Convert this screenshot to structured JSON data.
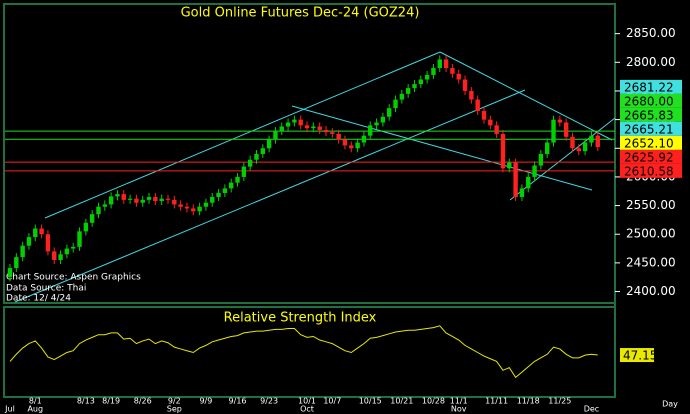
{
  "chart_data": [
    {
      "type": "candlestick",
      "title": "Gold Online Futures Dec-24 (GOZ24)",
      "xlabel": "Day",
      "sources": [
        "Chart Source: Aspen Graphics",
        "Data Source: Thai",
        "Date: 12/ 4/24"
      ],
      "categories": [
        null,
        null,
        null,
        null,
        "8/1",
        null,
        null,
        null,
        null,
        null,
        null,
        null,
        "8/13",
        null,
        null,
        null,
        "8/19",
        null,
        null,
        null,
        null,
        "8/26",
        null,
        null,
        null,
        null,
        "9/2",
        null,
        null,
        null,
        null,
        "9/9",
        null,
        null,
        null,
        null,
        "9/16",
        null,
        null,
        null,
        null,
        "9/23",
        null,
        null,
        null,
        null,
        null,
        "10/1",
        null,
        null,
        null,
        "10/7",
        null,
        null,
        null,
        null,
        null,
        "10/15",
        null,
        null,
        null,
        null,
        "10/21",
        null,
        null,
        null,
        null,
        "10/28",
        null,
        null,
        null,
        "11/1",
        null,
        null,
        null,
        null,
        null,
        "11/11",
        null,
        null,
        null,
        null,
        "11/18",
        null,
        null,
        null,
        null,
        "11/25",
        null,
        null,
        null,
        null,
        null,
        null
      ],
      "month_labels": [
        "Jul",
        null,
        null,
        null,
        "Aug",
        null,
        null,
        null,
        null,
        null,
        null,
        null,
        null,
        null,
        null,
        null,
        null,
        null,
        null,
        null,
        null,
        null,
        null,
        null,
        null,
        null,
        "Sep",
        null,
        null,
        null,
        null,
        null,
        null,
        null,
        null,
        null,
        null,
        null,
        null,
        null,
        null,
        null,
        null,
        null,
        null,
        null,
        null,
        "Oct",
        null,
        null,
        null,
        null,
        null,
        null,
        null,
        null,
        null,
        null,
        null,
        null,
        null,
        null,
        null,
        null,
        null,
        null,
        null,
        null,
        null,
        null,
        null,
        "Nov",
        null,
        null,
        null,
        null,
        null,
        null,
        null,
        null,
        null,
        null,
        null,
        null,
        null,
        null,
        null,
        null,
        null,
        null,
        null,
        null,
        "Dec",
        null
      ],
      "open": [
        2425,
        2441,
        2460,
        2480,
        2495,
        2510,
        2500,
        2470,
        2455,
        2465,
        2475,
        2478,
        2505,
        2520,
        2535,
        2548,
        2552,
        2566,
        2570,
        2560,
        2562,
        2555,
        2560,
        2565,
        2558,
        2562,
        2560,
        2552,
        2548,
        2545,
        2540,
        2548,
        2555,
        2565,
        2572,
        2580,
        2590,
        2600,
        2618,
        2630,
        2640,
        2650,
        2665,
        2680,
        2688,
        2695,
        2700,
        2690,
        2685,
        2688,
        2682,
        2678,
        2675,
        2665,
        2655,
        2650,
        2660,
        2672,
        2690,
        2695,
        2705,
        2720,
        2735,
        2745,
        2755,
        2762,
        2770,
        2778,
        2790,
        2805,
        2790,
        2780,
        2770,
        2750,
        2735,
        2715,
        2700,
        2690,
        2675,
        2615,
        2625,
        2565,
        2580,
        2600,
        2620,
        2640,
        2660,
        2700,
        2695,
        2670,
        2650,
        2645,
        2660,
        2672
      ],
      "high": [
        2448,
        2467,
        2487,
        2502,
        2517,
        2517,
        2507,
        2477,
        2472,
        2482,
        2485,
        2512,
        2527,
        2542,
        2555,
        2559,
        2573,
        2577,
        2577,
        2569,
        2569,
        2567,
        2572,
        2572,
        2569,
        2569,
        2567,
        2559,
        2555,
        2552,
        2555,
        2562,
        2572,
        2579,
        2587,
        2597,
        2607,
        2625,
        2637,
        2647,
        2657,
        2672,
        2687,
        2695,
        2702,
        2707,
        2707,
        2697,
        2695,
        2695,
        2689,
        2685,
        2682,
        2672,
        2662,
        2667,
        2679,
        2697,
        2702,
        2712,
        2727,
        2742,
        2752,
        2762,
        2769,
        2777,
        2785,
        2797,
        2812,
        2812,
        2797,
        2787,
        2777,
        2757,
        2742,
        2722,
        2707,
        2697,
        2682,
        2632,
        2632,
        2587,
        2607,
        2627,
        2647,
        2667,
        2707,
        2707,
        2702,
        2677,
        2657,
        2667,
        2679,
        2679
      ],
      "low": [
        2418,
        2434,
        2453,
        2473,
        2488,
        2493,
        2463,
        2448,
        2448,
        2458,
        2468,
        2471,
        2498,
        2513,
        2528,
        2541,
        2545,
        2559,
        2553,
        2553,
        2548,
        2548,
        2553,
        2551,
        2551,
        2553,
        2545,
        2541,
        2538,
        2533,
        2533,
        2541,
        2548,
        2558,
        2565,
        2573,
        2583,
        2593,
        2611,
        2623,
        2633,
        2643,
        2658,
        2673,
        2681,
        2688,
        2683,
        2678,
        2678,
        2675,
        2671,
        2668,
        2658,
        2648,
        2643,
        2643,
        2653,
        2665,
        2683,
        2688,
        2698,
        2713,
        2728,
        2738,
        2748,
        2755,
        2763,
        2771,
        2783,
        2783,
        2773,
        2763,
        2743,
        2728,
        2708,
        2693,
        2683,
        2668,
        2608,
        2608,
        2558,
        2558,
        2573,
        2593,
        2613,
        2633,
        2653,
        2688,
        2663,
        2643,
        2638,
        2638,
        2653,
        2645
      ],
      "close": [
        2441,
        2460,
        2480,
        2495,
        2510,
        2500,
        2470,
        2455,
        2465,
        2475,
        2478,
        2505,
        2520,
        2535,
        2548,
        2552,
        2566,
        2570,
        2560,
        2562,
        2555,
        2560,
        2565,
        2558,
        2562,
        2560,
        2552,
        2548,
        2545,
        2540,
        2548,
        2555,
        2565,
        2572,
        2580,
        2590,
        2600,
        2618,
        2630,
        2640,
        2650,
        2665,
        2680,
        2688,
        2695,
        2700,
        2690,
        2685,
        2688,
        2682,
        2678,
        2675,
        2665,
        2655,
        2650,
        2660,
        2672,
        2690,
        2695,
        2705,
        2720,
        2735,
        2745,
        2755,
        2762,
        2770,
        2778,
        2790,
        2805,
        2790,
        2780,
        2770,
        2750,
        2735,
        2715,
        2700,
        2690,
        2675,
        2615,
        2625,
        2565,
        2580,
        2600,
        2620,
        2640,
        2660,
        2700,
        2695,
        2670,
        2650,
        2645,
        2660,
        2672,
        2652.1
      ],
      "up_color": "#00d000",
      "down_color": "#ff2020",
      "ylim": [
        2380,
        2900
      ],
      "yticks": [
        {
          "value": 2400,
          "label": "2400.00"
        },
        {
          "value": 2450,
          "label": "2450.00"
        },
        {
          "value": 2500,
          "label": "2500.00"
        },
        {
          "value": 2550,
          "label": "2550.00"
        },
        {
          "value": 2600,
          "label": "2600.00"
        },
        {
          "value": 2650,
          "label": "2650.00"
        },
        {
          "value": 2700,
          "label": "2700.00"
        },
        {
          "value": 2750,
          "label": "2750.00"
        },
        {
          "value": 2800,
          "label": "2800.00"
        },
        {
          "value": 2850,
          "label": "2850.00"
        }
      ],
      "levels": [
        {
          "value": 2681.22,
          "label": "2681.22",
          "color": "#40e0e0",
          "line": false
        },
        {
          "value": 2680,
          "label": "2680.00",
          "color": "#20e020",
          "line": true
        },
        {
          "value": 2665.83,
          "label": "2665.83",
          "color": "#20e020",
          "line": true
        },
        {
          "value": 2665.21,
          "label": "2665.21",
          "color": "#40e0e0",
          "line": false
        },
        {
          "value": 2652.1,
          "label": "2652.10",
          "color": "#ffff00",
          "line": false
        },
        {
          "value": 2625.92,
          "label": "2625.92",
          "color": "#ff2020",
          "line": true
        },
        {
          "value": 2610.58,
          "label": "2610.58",
          "color": "#ff2020",
          "line": true
        }
      ]
    },
    {
      "type": "line",
      "title": "Relative Strength Index",
      "color": "#e8e800",
      "ylim": [
        0,
        100
      ],
      "values": [
        40,
        48,
        55,
        60,
        63,
        55,
        45,
        42,
        46,
        50,
        52,
        60,
        64,
        67,
        70,
        70,
        72,
        72,
        65,
        66,
        60,
        63,
        65,
        60,
        63,
        61,
        56,
        54,
        52,
        50,
        55,
        58,
        62,
        64,
        66,
        68,
        69,
        72,
        73,
        74,
        74,
        75,
        76,
        76,
        77,
        77,
        70,
        67,
        68,
        64,
        62,
        60,
        56,
        52,
        50,
        55,
        60,
        66,
        67,
        69,
        71,
        73,
        74,
        75,
        75,
        76,
        77,
        78,
        80,
        72,
        68,
        64,
        58,
        54,
        50,
        46,
        43,
        40,
        30,
        33,
        22,
        28,
        34,
        40,
        44,
        48,
        56,
        54,
        48,
        44,
        44,
        47,
        48,
        47.15
      ]
    }
  ]
}
